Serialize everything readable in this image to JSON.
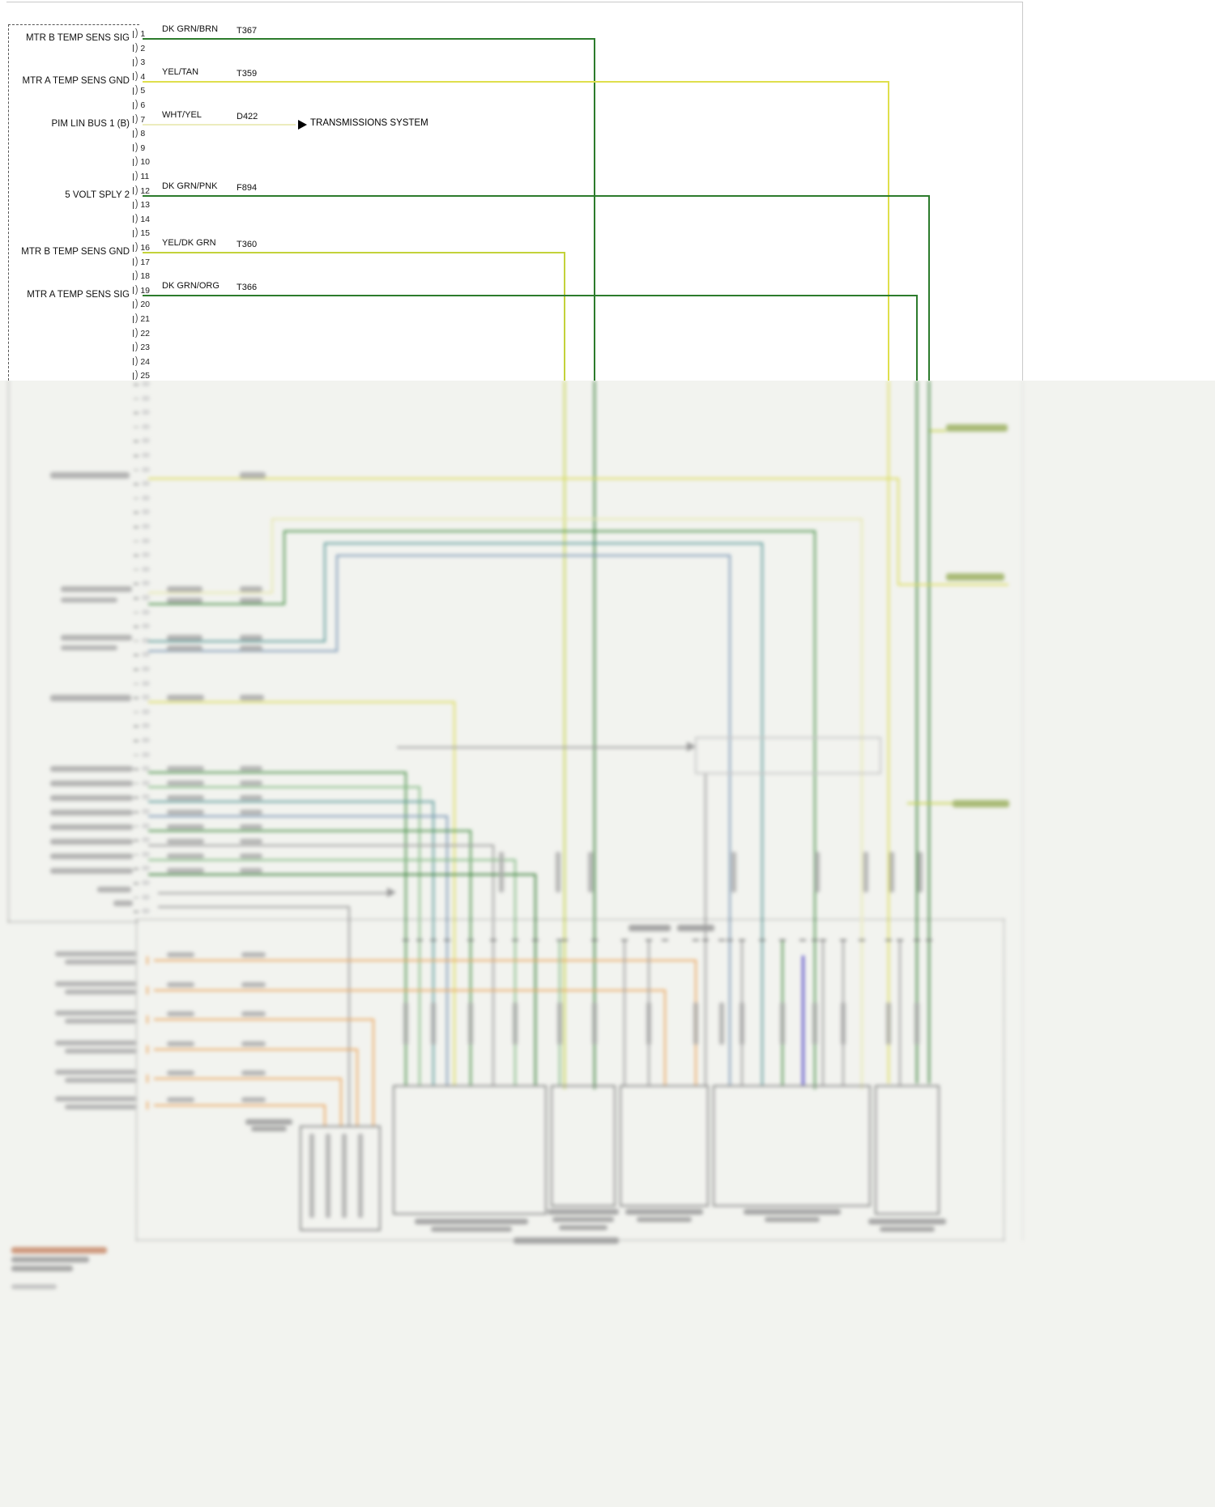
{
  "connector": {
    "pins": [
      "1",
      "2",
      "3",
      "4",
      "5",
      "6",
      "7",
      "8",
      "9",
      "10",
      "11",
      "12",
      "13",
      "14",
      "15",
      "16",
      "17",
      "18",
      "19",
      "20",
      "21",
      "22",
      "23",
      "24",
      "25"
    ]
  },
  "wires": [
    {
      "pin": "1",
      "label": "MTR B TEMP SENS SIG",
      "color_name": "DK GRN/BRN",
      "code": "T367",
      "hex": "#2c7b2c"
    },
    {
      "pin": "4",
      "label": "MTR A TEMP SENS GND",
      "color_name": "YEL/TAN",
      "code": "T359",
      "hex": "#dfdf4c"
    },
    {
      "pin": "7",
      "label": "PIM LIN BUS 1 (B)",
      "color_name": "WHT/YEL",
      "code": "D422",
      "hex": "#ecECbE",
      "target": "TRANSMISSIONS SYSTEM"
    },
    {
      "pin": "12",
      "label": "5 VOLT SPLY 2",
      "color_name": "DK GRN/PNK",
      "code": "F894",
      "hex": "#2c7b2c"
    },
    {
      "pin": "16",
      "label": "MTR B TEMP SENS GND",
      "color_name": "YEL/DK GRN",
      "code": "T360",
      "hex": "#c3d23a"
    },
    {
      "pin": "19",
      "label": "MTR A TEMP SENS SIG",
      "color_name": "DK GRN/ORG",
      "code": "T366",
      "hex": "#2c7b2c"
    }
  ]
}
